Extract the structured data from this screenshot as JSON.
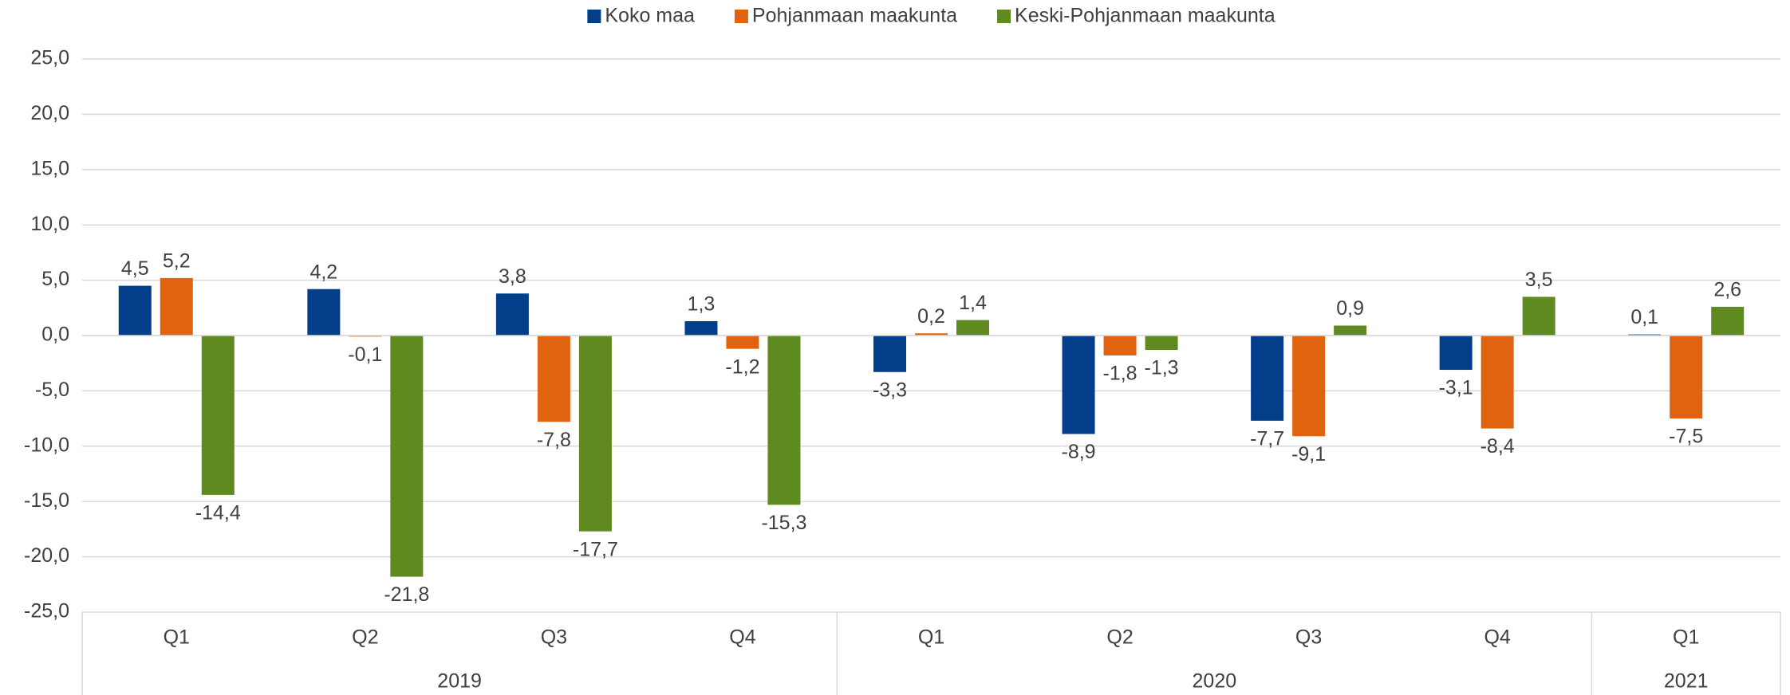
{
  "chart_data": {
    "type": "bar",
    "categories": [
      "Q1",
      "Q2",
      "Q3",
      "Q4",
      "Q1",
      "Q2",
      "Q3",
      "Q4",
      "Q1"
    ],
    "category_groups": [
      {
        "label": "2019",
        "size": 4
      },
      {
        "label": "2020",
        "size": 4
      },
      {
        "label": "2021",
        "size": 1
      }
    ],
    "series": [
      {
        "name": "Koko maa",
        "color": "#023e8a",
        "values": [
          4.5,
          4.2,
          3.8,
          1.3,
          -3.3,
          -8.9,
          -7.7,
          -3.1,
          0.1
        ],
        "value_labels": [
          "4,5",
          "4,2",
          "3,8",
          "1,3",
          "-3,3",
          "-8,9",
          "-7,7",
          "-3,1",
          "0,1"
        ]
      },
      {
        "name": "Pohjanmaan maakunta",
        "color": "#e0640f",
        "values": [
          5.2,
          -0.1,
          -7.8,
          -1.2,
          0.2,
          -1.8,
          -9.1,
          -8.4,
          -7.5
        ],
        "value_labels": [
          "5,2",
          "-0,1",
          "-7,8",
          "-1,2",
          "0,2",
          "-1,8",
          "-9,1",
          "-8,4",
          "-7,5"
        ]
      },
      {
        "name": "Keski-Pohjanmaan maakunta",
        "color": "#5e8a1f",
        "values": [
          -14.4,
          -21.8,
          -17.7,
          -15.3,
          1.4,
          -1.3,
          0.9,
          3.5,
          2.6
        ],
        "value_labels": [
          "-14,4",
          "-21,8",
          "-17,7",
          "-15,3",
          "1,4",
          "-1,3",
          "0,9",
          "3,5",
          "2,6"
        ]
      }
    ],
    "ylim": [
      -25,
      25
    ],
    "yticks": [
      {
        "value": -25,
        "label": "-25,0"
      },
      {
        "value": -20,
        "label": "-20,0"
      },
      {
        "value": -15,
        "label": "-15,0"
      },
      {
        "value": -10,
        "label": "-10,0"
      },
      {
        "value": -5,
        "label": "-5,0"
      },
      {
        "value": 0,
        "label": "0,0"
      },
      {
        "value": 5,
        "label": "5,0"
      },
      {
        "value": 10,
        "label": "10,0"
      },
      {
        "value": 15,
        "label": "15,0"
      },
      {
        "value": 20,
        "label": "20,0"
      },
      {
        "value": 25,
        "label": "25,0"
      }
    ],
    "grid": true,
    "legend": "top"
  }
}
